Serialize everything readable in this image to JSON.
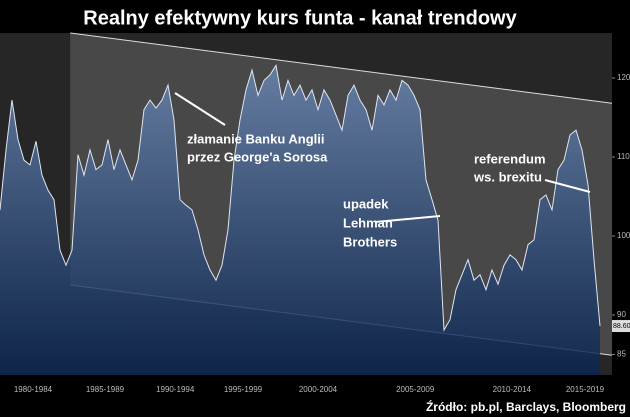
{
  "chart_data": {
    "type": "line",
    "title": "Realny efektywny kurs funta - kanał trendowy",
    "source": "Źródło: pb.pl, Barclays, Bloomberg",
    "series": [
      {
        "color": "#dfe6f0",
        "values": [
          103.3,
          110.9,
          117.2,
          112.2,
          109.6,
          109,
          112,
          107.7,
          105.8,
          104.6,
          98.2,
          96.3,
          98.2,
          110.3,
          107.7,
          110.9,
          108.4,
          109,
          112.2,
          108.4,
          110.9,
          109,
          107.1,
          109.6,
          116,
          117.2,
          116.2,
          117.2,
          119.1,
          114.7,
          104.6,
          103.9,
          103.3,
          100.8,
          97.6,
          95.7,
          94.4,
          96.3,
          100.8,
          109.6,
          114.7,
          118.5,
          121,
          117.8,
          119.7,
          120.4,
          121.6,
          117.2,
          119.7,
          117.8,
          119.1,
          117.2,
          118.5,
          116,
          118.5,
          117.2,
          115.3,
          113.4,
          117.8,
          119.1,
          117.2,
          116,
          113.4,
          117.8,
          116.6,
          118.5,
          117.2,
          119.7,
          119.1,
          117.8,
          116,
          107.1,
          104.6,
          102,
          88.1,
          89.4,
          93.2,
          95.1,
          97,
          94.4,
          95.1,
          93.2,
          95.7,
          93.9,
          96.3,
          97.6,
          97,
          95.7,
          98.9,
          99.5,
          104.6,
          105.2,
          103.3,
          108.4,
          109.6,
          112.8,
          113.4,
          110.9,
          106.5,
          97,
          88.6
        ]
      }
    ],
    "last_value": {
      "value": 88.6,
      "label": "88.60"
    },
    "channel": {
      "x": [
        11.7,
        102
      ],
      "upper": [
        125.7,
        116.8
      ],
      "lower": [
        93.8,
        84.9
      ]
    },
    "xlim": [
      0,
      102
    ],
    "xticks": [
      {
        "value": 5.5,
        "label": "1980-1984"
      },
      {
        "value": 17.5,
        "label": "1985-1989"
      },
      {
        "value": 29.2,
        "label": "1990-1994"
      },
      {
        "value": 40.5,
        "label": "1995-1999"
      },
      {
        "value": 53,
        "label": "2000-2004"
      },
      {
        "value": 69.2,
        "label": "2005-2009"
      },
      {
        "value": 85.3,
        "label": "2010-2014"
      },
      {
        "value": 97.5,
        "label": "2015-2019"
      }
    ],
    "ylim": [
      82.4,
      125.7
    ],
    "yticks": [
      85,
      90,
      100,
      110,
      120
    ],
    "annotations": [
      {
        "lines": [
          "złamanie Banku Anglii",
          "przez George'a Sorosa"
        ]
      },
      {
        "lines": [
          "upadek",
          "Lehman",
          "Brothers"
        ]
      },
      {
        "lines": [
          "referendum",
          "ws. brexitu"
        ]
      }
    ]
  }
}
